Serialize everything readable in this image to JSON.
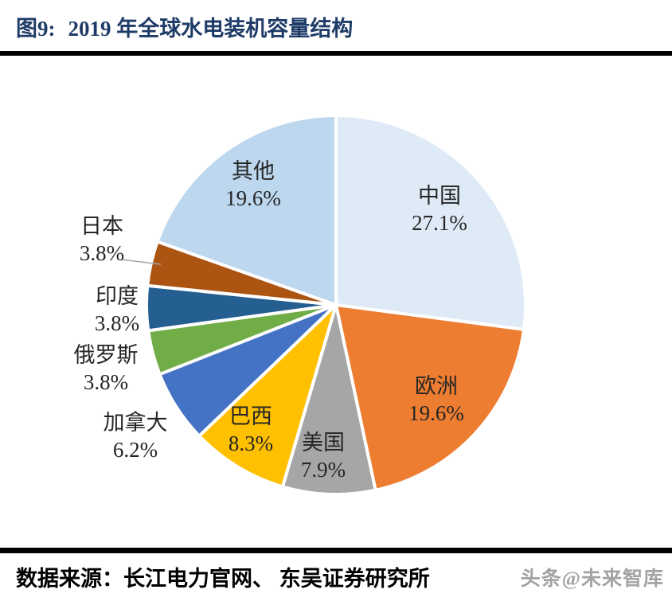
{
  "header": {
    "figure_label": "图9:",
    "title": "2019 年全球水电装机容量结构"
  },
  "chart_data": {
    "type": "pie",
    "title": "2019 年全球水电装机容量结构",
    "value_unit": "percent",
    "direction": "clockwise",
    "start_angle_deg": 0,
    "legend_position": "none",
    "label_format": "category name + percent",
    "slices": [
      {
        "id": "china",
        "label": "中国",
        "value": 27.1,
        "color": "#DEEAF6",
        "label_placement": "inside"
      },
      {
        "id": "europe",
        "label": "欧洲",
        "value": 19.6,
        "color": "#ED7D31",
        "label_placement": "inside"
      },
      {
        "id": "usa",
        "label": "美国",
        "value": 7.9,
        "color": "#A6A6A6",
        "label_placement": "inside"
      },
      {
        "id": "brazil",
        "label": "巴西",
        "value": 8.3,
        "color": "#FFC000",
        "label_placement": "inside"
      },
      {
        "id": "canada",
        "label": "加拿大",
        "value": 6.2,
        "color": "#4472C4",
        "label_placement": "outside-left"
      },
      {
        "id": "russia",
        "label": "俄罗斯",
        "value": 3.8,
        "color": "#70AD47",
        "label_placement": "outside-left"
      },
      {
        "id": "india",
        "label": "印度",
        "value": 3.8,
        "color": "#255E91",
        "label_placement": "outside-left"
      },
      {
        "id": "japan",
        "label": "日本",
        "value": 3.8,
        "color": "#AC5412",
        "label_placement": "outside-left-with-leader-line"
      },
      {
        "id": "others",
        "label": "其他",
        "value": 19.6,
        "color": "#BDD7EE",
        "label_placement": "inside"
      }
    ]
  },
  "footer": {
    "source_label": "数据来源：",
    "source_text": "长江电力官网、 东吴证券研究所",
    "watermark": "头条@未来智库"
  },
  "colors": {
    "title_text": "#1F3C68",
    "divider": "#000000",
    "slice_label_text": "#262626",
    "slice_border": "#FFFFFF",
    "leader_line": "#A6A6A6",
    "watermark_text": "#A3A3A3",
    "background": "#FFFFFF"
  }
}
